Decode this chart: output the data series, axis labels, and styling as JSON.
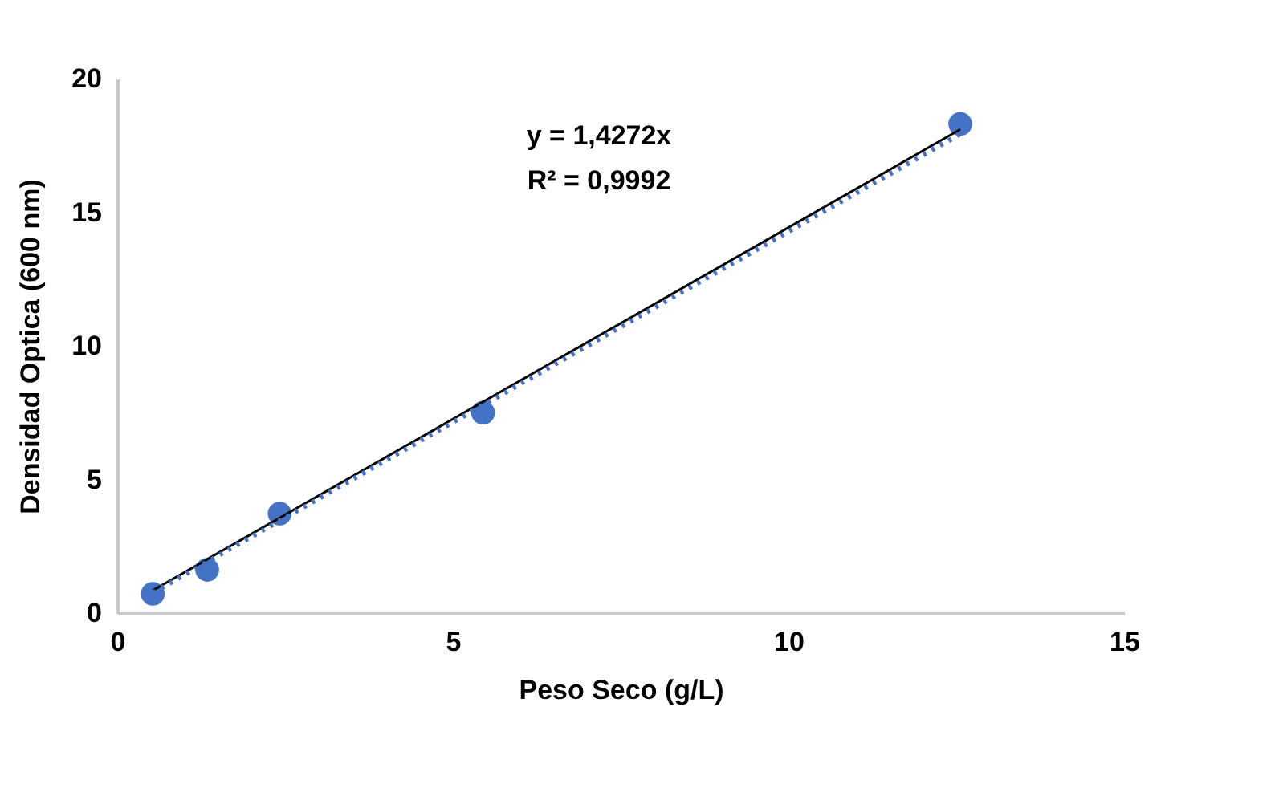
{
  "chart_data": {
    "type": "scatter",
    "xlabel": "Peso Seco (g/L)",
    "ylabel": "Densidad Optica (600 nm)",
    "annotations": [
      "y = 1,4272x",
      "R² = 0,9992"
    ],
    "xlim": [
      0,
      15
    ],
    "xticks": [
      0,
      5,
      10,
      15
    ],
    "ylim": [
      0,
      20
    ],
    "yticks": [
      0,
      5,
      10,
      15,
      20
    ],
    "grid": false,
    "series": [
      {
        "color": "#4472c4",
        "marker": "circle",
        "x": [
          0.53,
          1.34,
          2.42,
          5.45,
          12.56
        ],
        "values": [
          0.72,
          1.62,
          3.72,
          7.5,
          18.3
        ]
      },
      {
        "type": "line",
        "color": "#000000",
        "line_style": "solid",
        "marker": "none",
        "x": [
          0.53,
          12.56
        ],
        "values": [
          0.85,
          18.1
        ]
      },
      {
        "type": "line",
        "color": "#4472c4",
        "line_style": "dotted",
        "marker": "none",
        "x": [
          0.53,
          12.56
        ],
        "values": [
          0.76,
          17.93
        ]
      }
    ]
  }
}
